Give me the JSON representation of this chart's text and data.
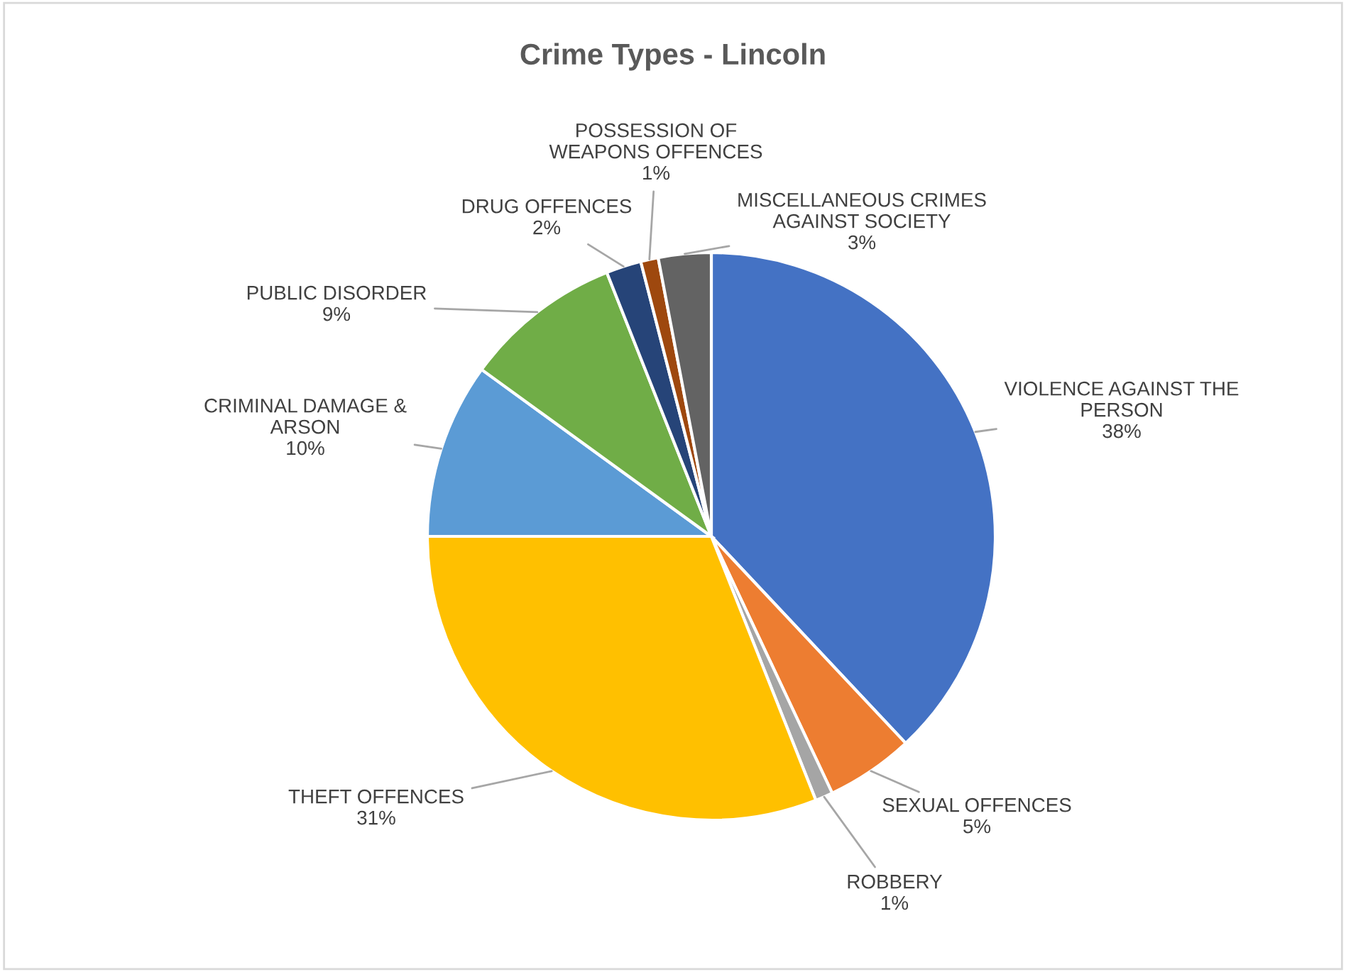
{
  "chart_data": {
    "type": "pie",
    "title": "Crime Types - Lincoln",
    "categories": [
      "VIOLENCE AGAINST THE PERSON",
      "SEXUAL OFFENCES",
      "ROBBERY",
      "THEFT OFFENCES",
      "CRIMINAL DAMAGE & ARSON",
      "PUBLIC DISORDER",
      "DRUG OFFENCES",
      "POSSESSION OF WEAPONS OFFENCES",
      "MISCELLANEOUS CRIMES AGAINST SOCIETY"
    ],
    "values": [
      38,
      5,
      1,
      31,
      10,
      9,
      2,
      1,
      3
    ],
    "colors": [
      "#4472c4",
      "#ed7d31",
      "#a5a5a5",
      "#ffc000",
      "#5b9bd5",
      "#70ad47",
      "#264478",
      "#9e480e",
      "#636363"
    ],
    "value_labels": [
      "38%",
      "5%",
      "1%",
      "31%",
      "10%",
      "9%",
      "2%",
      "1%",
      "3%"
    ],
    "legend": false
  }
}
